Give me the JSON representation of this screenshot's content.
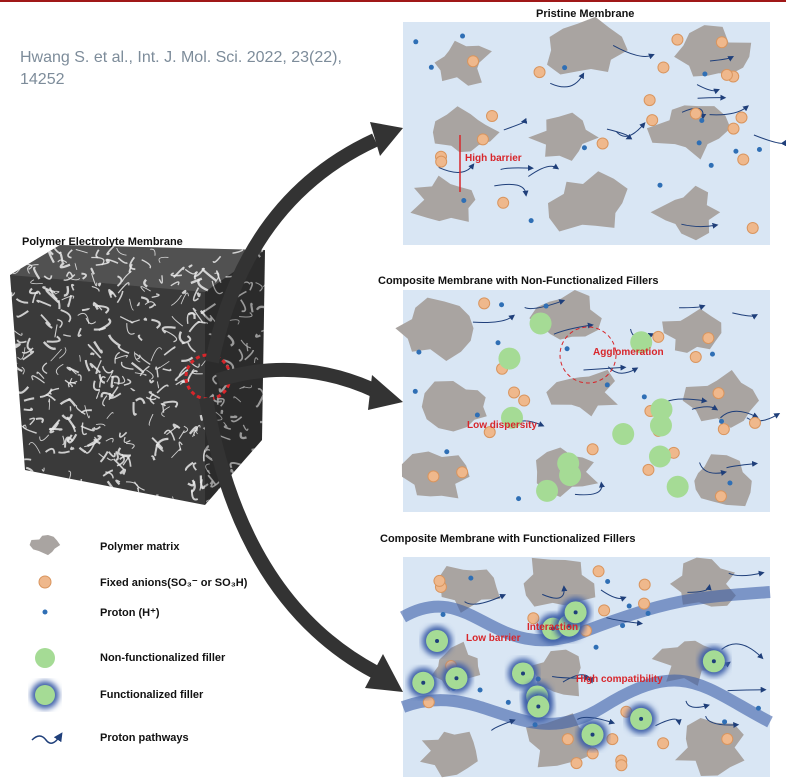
{
  "citation": "Hwang S. et al., Int. J. Mol. Sci. 2022, 23(22), 14252",
  "cube_label": "Polymer Electrolyte Membrane",
  "panels": [
    {
      "title": "Pristine Membrane",
      "labels": [
        "High barrier"
      ]
    },
    {
      "title": "Composite Membrane with Non-Functionalized Fillers",
      "labels": [
        "Agglomeration",
        "Low dispersity"
      ]
    },
    {
      "title": "Composite Membrane with Functionalized Fillers",
      "labels": [
        "Interaction",
        "Low barrier",
        "High compatibility"
      ]
    }
  ],
  "legend": [
    "Polymer matrix",
    "Fixed anions(SO₃⁻ or SO₃H)",
    "Proton (H⁺)",
    "Non-functionalized filler",
    "Functionalized filler",
    "Proton pathways"
  ]
}
